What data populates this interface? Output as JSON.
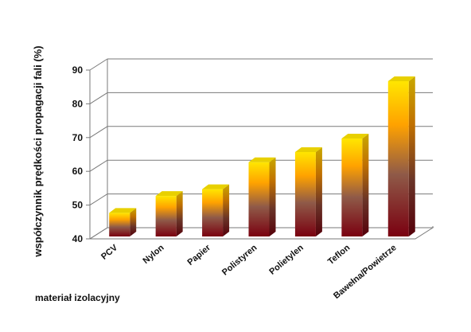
{
  "chart_data": {
    "type": "bar",
    "title": "",
    "ylabel": "współczynnik prędkości propagacji fali (%)",
    "xlabel": "materiał izolacyjny",
    "ylim": [
      40,
      90
    ],
    "yticks": [
      "40",
      "50",
      "60",
      "70",
      "80",
      "90"
    ],
    "grid": true,
    "legend": "none",
    "categories": [
      "PCV",
      "Nylon",
      "Papier",
      "Polistyren",
      "Polietylen",
      "Teflon",
      "Bawełna/Powietrze"
    ],
    "values": [
      47,
      52,
      54,
      62,
      65,
      69,
      86
    ],
    "colors": {
      "bar_top": "#ffe600",
      "bar_mid": "#ff9a00",
      "bar_low": "#8a5040",
      "bar_bottom": "#7a0010",
      "grid": "#7a7a7a"
    }
  }
}
